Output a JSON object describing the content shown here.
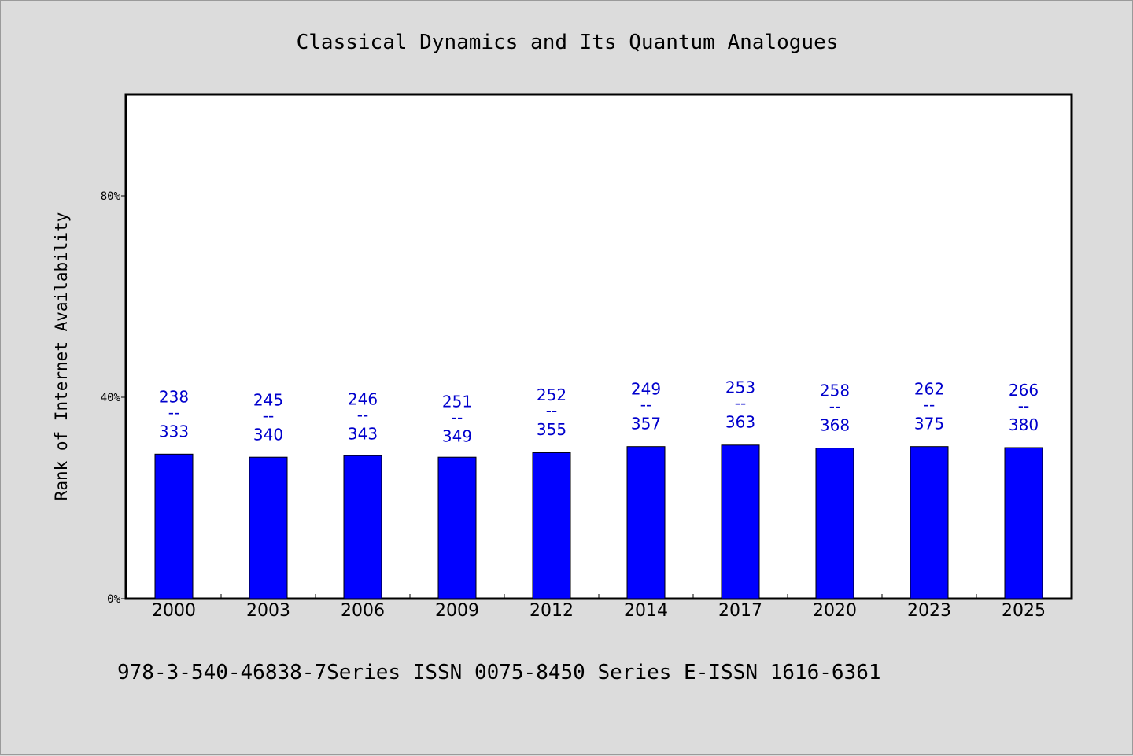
{
  "chart_data": {
    "type": "bar",
    "title": "Classical Dynamics and Its Quantum Analogues",
    "ylabel": "Rank of Internet Availability",
    "xlabel": "",
    "footer": "978-3-540-46838-7Series ISSN 0075-8450 Series E-ISSN 1616-6361",
    "categories": [
      "2000",
      "2003",
      "2006",
      "2009",
      "2012",
      "2014",
      "2017",
      "2020",
      "2023",
      "2025"
    ],
    "values": [
      28.7,
      28.1,
      28.4,
      28.1,
      29.0,
      30.2,
      30.5,
      29.9,
      30.2,
      30.0
    ],
    "bar_labels": [
      [
        "238",
        "--",
        "333"
      ],
      [
        "245",
        "--",
        "340"
      ],
      [
        "246",
        "--",
        "343"
      ],
      [
        "251",
        "--",
        "349"
      ],
      [
        "252",
        "--",
        "355"
      ],
      [
        "249",
        "--",
        "357"
      ],
      [
        "253",
        "--",
        "363"
      ],
      [
        "258",
        "--",
        "368"
      ],
      [
        "262",
        "--",
        "375"
      ],
      [
        "266",
        "--",
        "380"
      ]
    ],
    "label_top_values": [
      40.2,
      39.6,
      39.8,
      39.3,
      40.6,
      41.8,
      42.1,
      41.5,
      41.8,
      41.6
    ],
    "yticks": [
      0,
      40,
      80
    ],
    "ytick_labels": [
      "0%",
      "40%",
      "80%"
    ],
    "ylim": [
      0,
      100
    ],
    "grid": false,
    "colors": {
      "bar": "#0000ff",
      "bar_label": "#0000cc",
      "background": "#dcdcdc",
      "plot_bg": "#ffffff"
    }
  }
}
